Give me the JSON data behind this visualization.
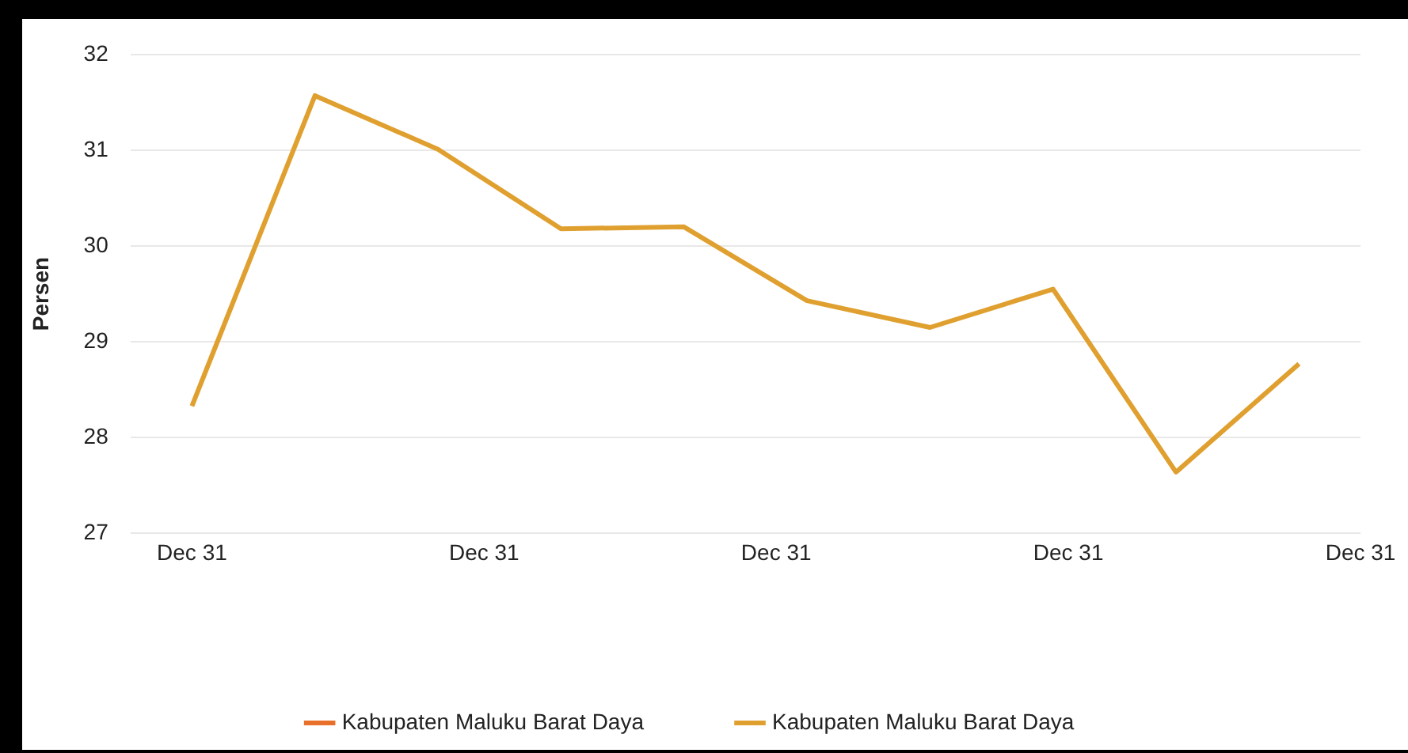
{
  "chart_data": {
    "type": "line",
    "ylabel": "Persen",
    "categories": [
      null,
      null,
      null,
      null,
      null,
      null,
      null,
      null,
      null,
      null
    ],
    "annotations": [
      "Dec 31",
      "Dec 31",
      "Dec 31",
      "Dec 31",
      "Dec 31"
    ],
    "ylim": [
      27,
      32
    ],
    "yticks": [
      27,
      28,
      29,
      30,
      31,
      32
    ],
    "grid": "y",
    "legend": "bottom",
    "marker": "none",
    "line_style": "solid",
    "series": [
      {
        "name": "Kabupaten Maluku Barat Daya",
        "color": "#e8702a",
        "values": [
          null,
          null,
          null,
          null,
          null,
          null,
          null,
          null,
          null,
          null
        ]
      },
      {
        "name": "Kabupaten Maluku Barat Daya",
        "color": "#e0a030",
        "values": [
          28.33,
          31.57,
          31.01,
          30.18,
          30.2,
          29.43,
          29.15,
          29.55,
          27.64,
          28.77
        ]
      }
    ]
  }
}
